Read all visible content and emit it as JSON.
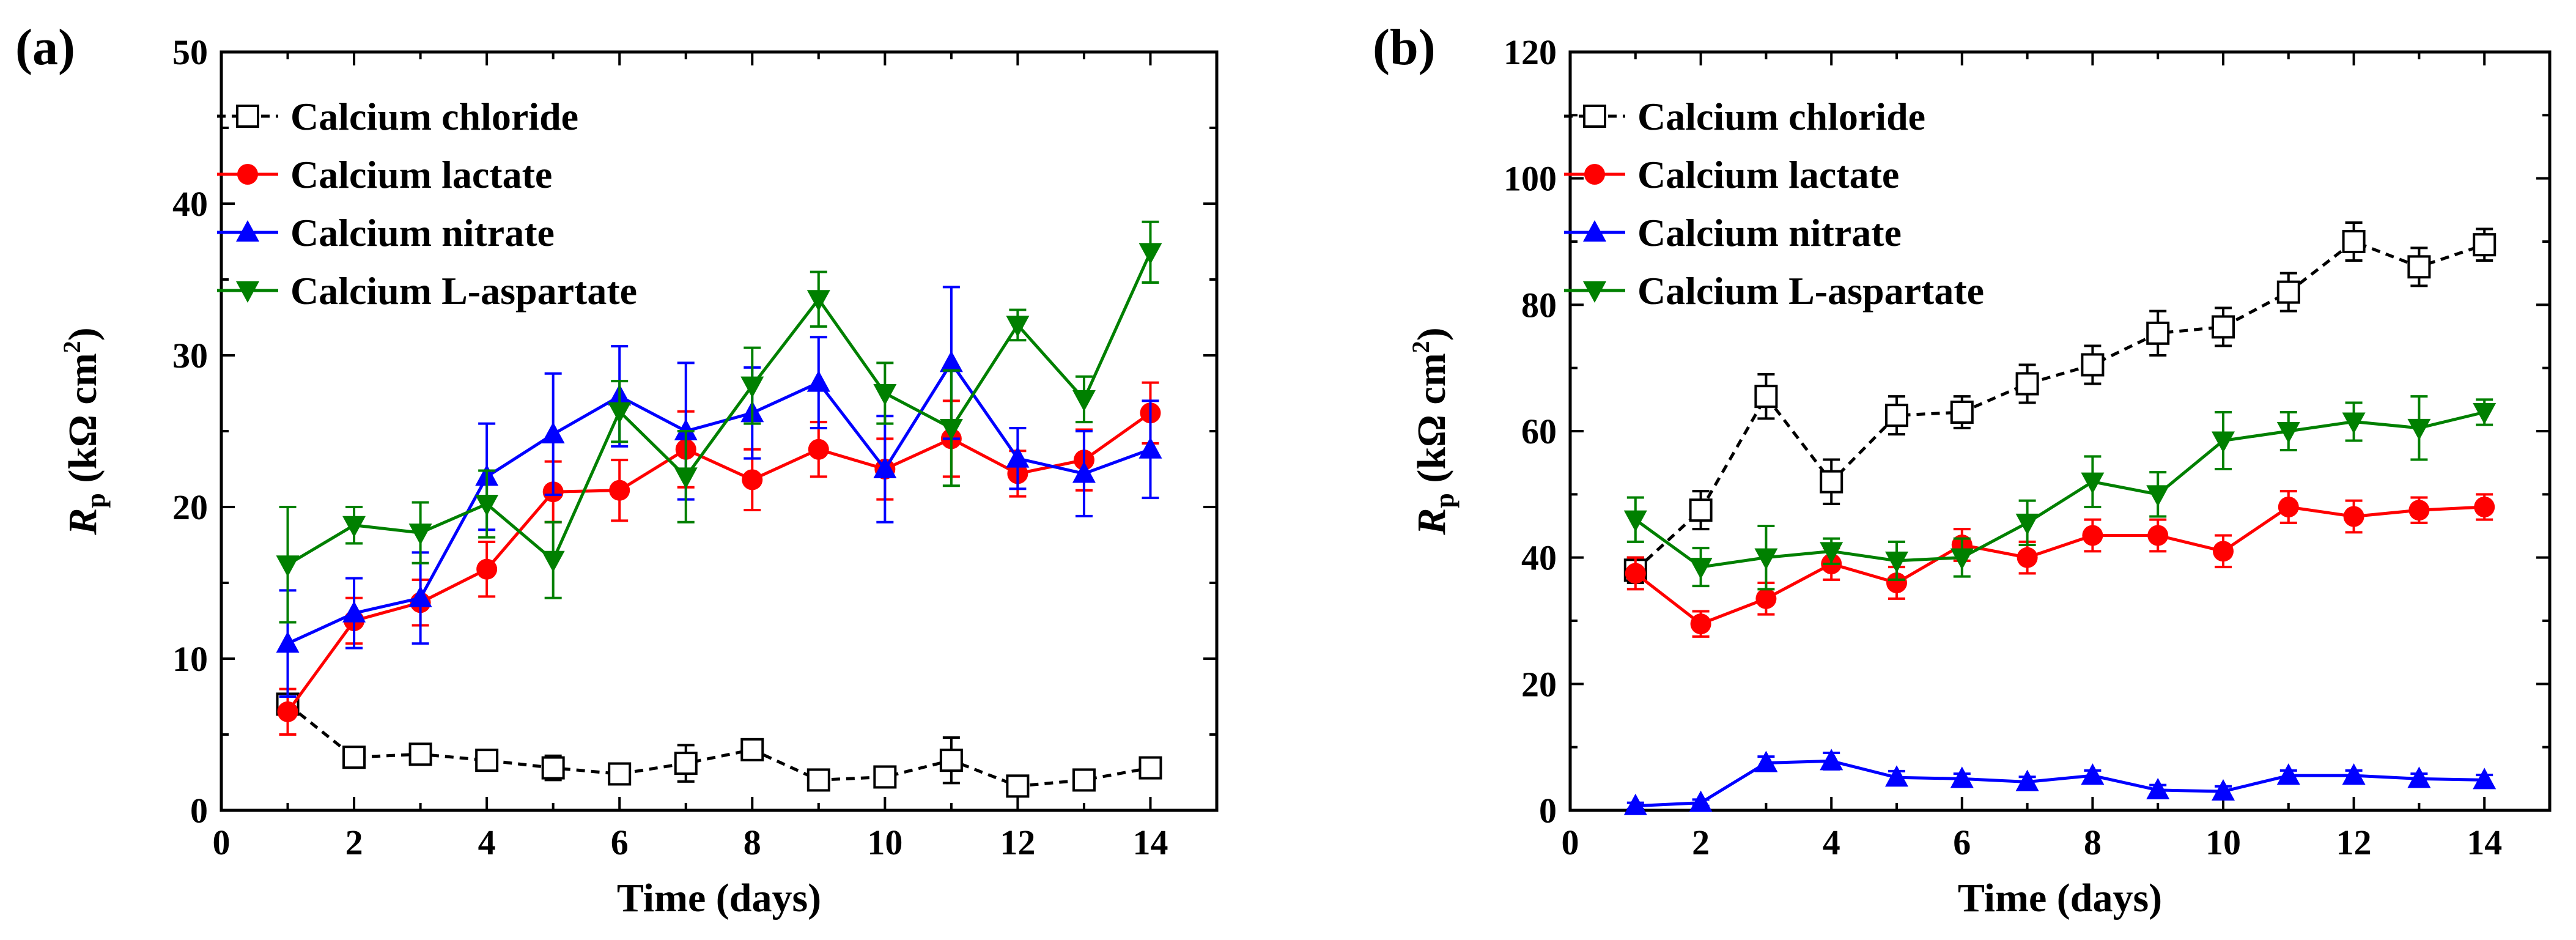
{
  "colors": {
    "Calcium chloride": "#000000",
    "Calcium lactate": "#ff0000",
    "Calcium nitrate": "#0000ff",
    "Calcium L-aspartate": "#008000"
  },
  "markers": {
    "Calcium chloride": "open-square",
    "Calcium lactate": "filled-circle",
    "Calcium nitrate": "filled-triangle-up",
    "Calcium L-aspartate": "filled-triangle-down"
  },
  "chart_data": [
    {
      "type": "line",
      "panel_label": "(a)",
      "xlabel": "Time (days)",
      "ylabel_main": "R",
      "ylabel_sub": "p",
      "ylabel_unit": " (kΩ cm",
      "ylabel_sup": "2",
      "ylabel_close": ")",
      "xlim": [
        0,
        15
      ],
      "ylim": [
        0,
        50
      ],
      "xticks": [
        0,
        2,
        4,
        6,
        8,
        10,
        12,
        14
      ],
      "yticks": [
        0,
        10,
        20,
        30,
        40,
        50
      ],
      "x_labels": [
        "0",
        "2",
        "4",
        "6",
        "8",
        "10",
        "12",
        "14"
      ],
      "y_labels": [
        "0",
        "10",
        "20",
        "30",
        "40",
        "50"
      ],
      "legend_position": "top-left",
      "x": [
        1,
        2,
        3,
        4,
        5,
        6,
        7,
        8,
        9,
        10,
        11,
        12,
        13,
        14
      ],
      "series": [
        {
          "name": "Calcium chloride",
          "values": [
            7.0,
            3.5,
            3.7,
            3.3,
            2.8,
            2.4,
            3.1,
            4.0,
            2.0,
            2.2,
            3.3,
            1.6,
            2.0,
            2.8
          ],
          "errors": [
            0.6,
            0.3,
            0.5,
            0.4,
            0.8,
            0.4,
            1.2,
            0.6,
            0.3,
            0.3,
            1.5,
            0.3,
            0.3,
            0.5
          ]
        },
        {
          "name": "Calcium lactate",
          "values": [
            6.5,
            12.5,
            13.7,
            15.9,
            21.0,
            21.1,
            23.8,
            21.8,
            23.8,
            22.5,
            24.5,
            22.2,
            23.1,
            26.2
          ],
          "errors": [
            1.5,
            1.5,
            1.5,
            1.8,
            2.0,
            2.0,
            2.5,
            2.0,
            1.8,
            2.0,
            2.5,
            1.5,
            2.0,
            2.0
          ]
        },
        {
          "name": "Calcium nitrate",
          "values": [
            11.0,
            13.0,
            14.0,
            22.0,
            24.8,
            27.3,
            25.0,
            26.2,
            28.2,
            22.5,
            29.5,
            23.2,
            22.2,
            23.8
          ],
          "errors": [
            3.5,
            2.3,
            3.0,
            3.5,
            4.0,
            3.3,
            4.5,
            3.0,
            3.0,
            3.5,
            5.0,
            2.0,
            2.8,
            3.2
          ]
        },
        {
          "name": "Calcium L-aspartate",
          "values": [
            16.2,
            18.8,
            18.3,
            20.2,
            16.5,
            26.3,
            22.0,
            28.0,
            33.7,
            27.5,
            25.2,
            32.0,
            27.1,
            36.8
          ],
          "errors": [
            3.8,
            1.2,
            2.0,
            2.2,
            2.5,
            2.0,
            3.0,
            2.5,
            1.8,
            2.0,
            3.8,
            1.0,
            1.5,
            2.0
          ]
        }
      ]
    },
    {
      "type": "line",
      "panel_label": "(b)",
      "xlabel": "Time (days)",
      "ylabel_main": "R",
      "ylabel_sub": "p",
      "ylabel_unit": " (kΩ cm",
      "ylabel_sup": "2",
      "ylabel_close": ")",
      "xlim": [
        0,
        15
      ],
      "ylim": [
        0,
        120
      ],
      "xticks": [
        0,
        2,
        4,
        6,
        8,
        10,
        12,
        14
      ],
      "yticks": [
        0,
        20,
        40,
        60,
        80,
        100,
        120
      ],
      "x_labels": [
        "0",
        "2",
        "4",
        "6",
        "8",
        "10",
        "12",
        "14"
      ],
      "y_labels": [
        "0",
        "20",
        "40",
        "60",
        "80",
        "100",
        "120"
      ],
      "legend_position": "top-left",
      "x": [
        1,
        2,
        3,
        4,
        5,
        6,
        7,
        8,
        9,
        10,
        11,
        12,
        13,
        14
      ],
      "series": [
        {
          "name": "Calcium chloride",
          "values": [
            38.0,
            47.5,
            65.5,
            52.0,
            62.5,
            63.0,
            67.5,
            70.5,
            75.5,
            76.5,
            82.0,
            90.0,
            86.0,
            89.5
          ],
          "errors": [
            2.0,
            3.0,
            3.5,
            3.5,
            3.0,
            2.5,
            3.0,
            3.0,
            3.5,
            3.0,
            3.0,
            3.0,
            3.0,
            2.5
          ]
        },
        {
          "name": "Calcium lactate",
          "values": [
            37.5,
            29.5,
            33.5,
            39.0,
            36.0,
            42.0,
            40.0,
            43.5,
            43.5,
            41.0,
            48.0,
            46.5,
            47.5,
            48.0
          ],
          "errors": [
            2.5,
            2.0,
            2.5,
            2.5,
            2.5,
            2.5,
            2.5,
            2.5,
            2.5,
            2.5,
            2.5,
            2.5,
            2.0,
            2.0
          ]
        },
        {
          "name": "Calcium nitrate",
          "values": [
            0.7,
            1.2,
            7.5,
            7.8,
            5.2,
            5.0,
            4.5,
            5.5,
            3.2,
            3.0,
            5.5,
            5.5,
            5.0,
            4.8
          ],
          "errors": [
            0.5,
            0.5,
            1.0,
            1.3,
            1.0,
            0.8,
            0.8,
            0.8,
            0.8,
            0.8,
            0.8,
            0.8,
            0.8,
            0.8
          ]
        },
        {
          "name": "Calcium L-aspartate",
          "values": [
            46.0,
            38.5,
            40.0,
            41.0,
            39.5,
            40.0,
            45.5,
            52.0,
            50.0,
            58.5,
            60.0,
            61.5,
            60.5,
            63.0
          ],
          "errors": [
            3.5,
            3.0,
            5.0,
            2.0,
            3.0,
            3.0,
            3.5,
            4.0,
            3.5,
            4.5,
            3.0,
            3.0,
            5.0,
            2.0
          ]
        }
      ]
    }
  ]
}
